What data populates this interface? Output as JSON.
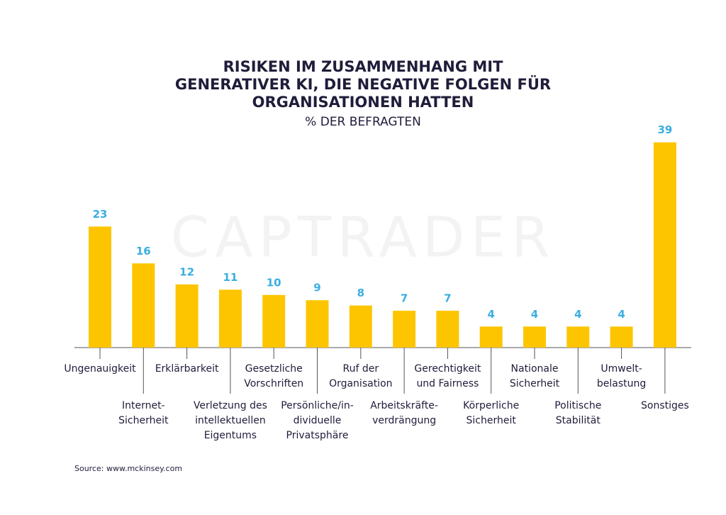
{
  "chart_data": {
    "type": "bar",
    "title": [
      "RISIKEN IM ZUSAMMENHANG MIT",
      "GENERATIVER KI, DIE NEGATIVE FOLGEN FÜR",
      "ORGANISATIONEN HATTEN"
    ],
    "subtitle": "% DER BEFRAGTEN",
    "watermark": "CAPTRADER",
    "categories": [
      [
        "Ungenauigkeit"
      ],
      [
        "Internet-",
        "Sicherheit"
      ],
      [
        "Erklärbarkeit"
      ],
      [
        "Verletzung des",
        "intellektuellen",
        "Eigentums"
      ],
      [
        "Gesetzliche",
        "Vorschriften"
      ],
      [
        "Persönliche/in-",
        "dividuelle",
        "Privatsphäre"
      ],
      [
        "Ruf der",
        "Organisation"
      ],
      [
        "Arbeitskräfte-",
        "verdrängung"
      ],
      [
        "Gerechtigkeit",
        "und Fairness"
      ],
      [
        "Körperliche",
        "Sicherheit"
      ],
      [
        "Nationale",
        "Sicherheit"
      ],
      [
        "Politische",
        "Stabilität"
      ],
      [
        "Umwelt-",
        "belastung"
      ],
      [
        "Sonstiges"
      ]
    ],
    "values": [
      23,
      16,
      12,
      11,
      10,
      9,
      8,
      7,
      7,
      4,
      4,
      4,
      4,
      39
    ],
    "color": "#fdc500",
    "source": "Source: www.mckinsey.com"
  }
}
